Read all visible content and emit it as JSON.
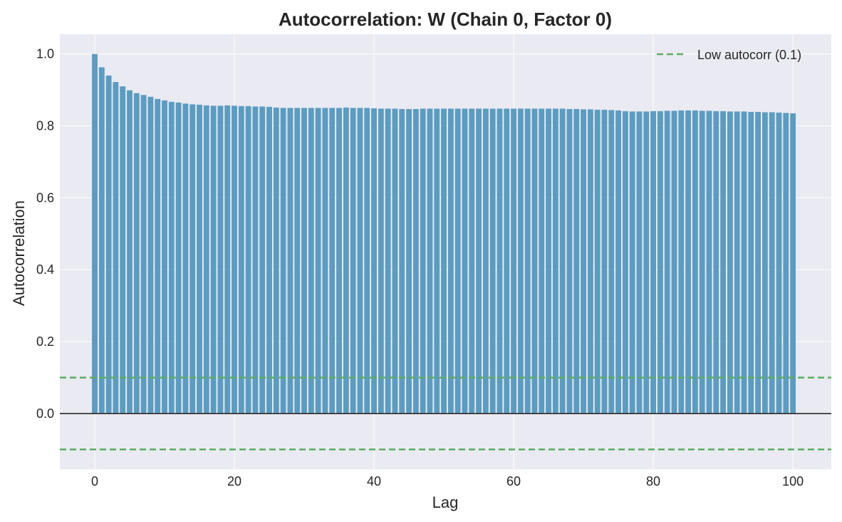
{
  "chart_data": {
    "type": "bar",
    "title": "Autocorrelation: W (Chain 0, Factor 0)",
    "xlabel": "Lag",
    "ylabel": "Autocorrelation",
    "xlim": [
      -5,
      105.5
    ],
    "ylim": [
      -0.155,
      1.055
    ],
    "x_ticks": [
      "0",
      "20",
      "40",
      "60",
      "80",
      "100"
    ],
    "y_ticks": [
      "0.0",
      "0.2",
      "0.4",
      "0.6",
      "0.8",
      "1.0"
    ],
    "grid": true,
    "legend_position": "upper right",
    "colors": {
      "background": "#eaeaf2",
      "bar": "#5b9cc0",
      "threshold_line": "#5aae61",
      "zero_line": "#1a1a1a",
      "grid": "#ffffff"
    },
    "reference_lines": [
      {
        "y": 0.1,
        "style": "dashed",
        "label": "Low autocorr (0.1)"
      },
      {
        "y": -0.1,
        "style": "dashed",
        "label": ""
      },
      {
        "y": 0.0,
        "style": "solid",
        "label": ""
      }
    ],
    "legend": [
      "Low autocorr (0.1)"
    ],
    "series": [
      {
        "values": [
          1.0,
          0.963,
          0.94,
          0.922,
          0.91,
          0.899,
          0.891,
          0.886,
          0.881,
          0.875,
          0.871,
          0.867,
          0.865,
          0.862,
          0.86,
          0.859,
          0.857,
          0.856,
          0.856,
          0.857,
          0.856,
          0.855,
          0.855,
          0.854,
          0.854,
          0.853,
          0.851,
          0.85,
          0.85,
          0.85,
          0.85,
          0.85,
          0.85,
          0.85,
          0.85,
          0.85,
          0.851,
          0.85,
          0.85,
          0.85,
          0.849,
          0.848,
          0.848,
          0.848,
          0.847,
          0.847,
          0.847,
          0.848,
          0.848,
          0.848,
          0.848,
          0.848,
          0.848,
          0.848,
          0.848,
          0.848,
          0.848,
          0.848,
          0.848,
          0.848,
          0.848,
          0.848,
          0.848,
          0.848,
          0.848,
          0.848,
          0.848,
          0.848,
          0.847,
          0.847,
          0.846,
          0.846,
          0.845,
          0.845,
          0.844,
          0.843,
          0.841,
          0.84,
          0.84,
          0.84,
          0.841,
          0.841,
          0.842,
          0.842,
          0.843,
          0.843,
          0.843,
          0.842,
          0.842,
          0.841,
          0.841,
          0.84,
          0.84,
          0.84,
          0.839,
          0.839,
          0.838,
          0.838,
          0.837,
          0.836,
          0.835
        ]
      }
    ]
  }
}
